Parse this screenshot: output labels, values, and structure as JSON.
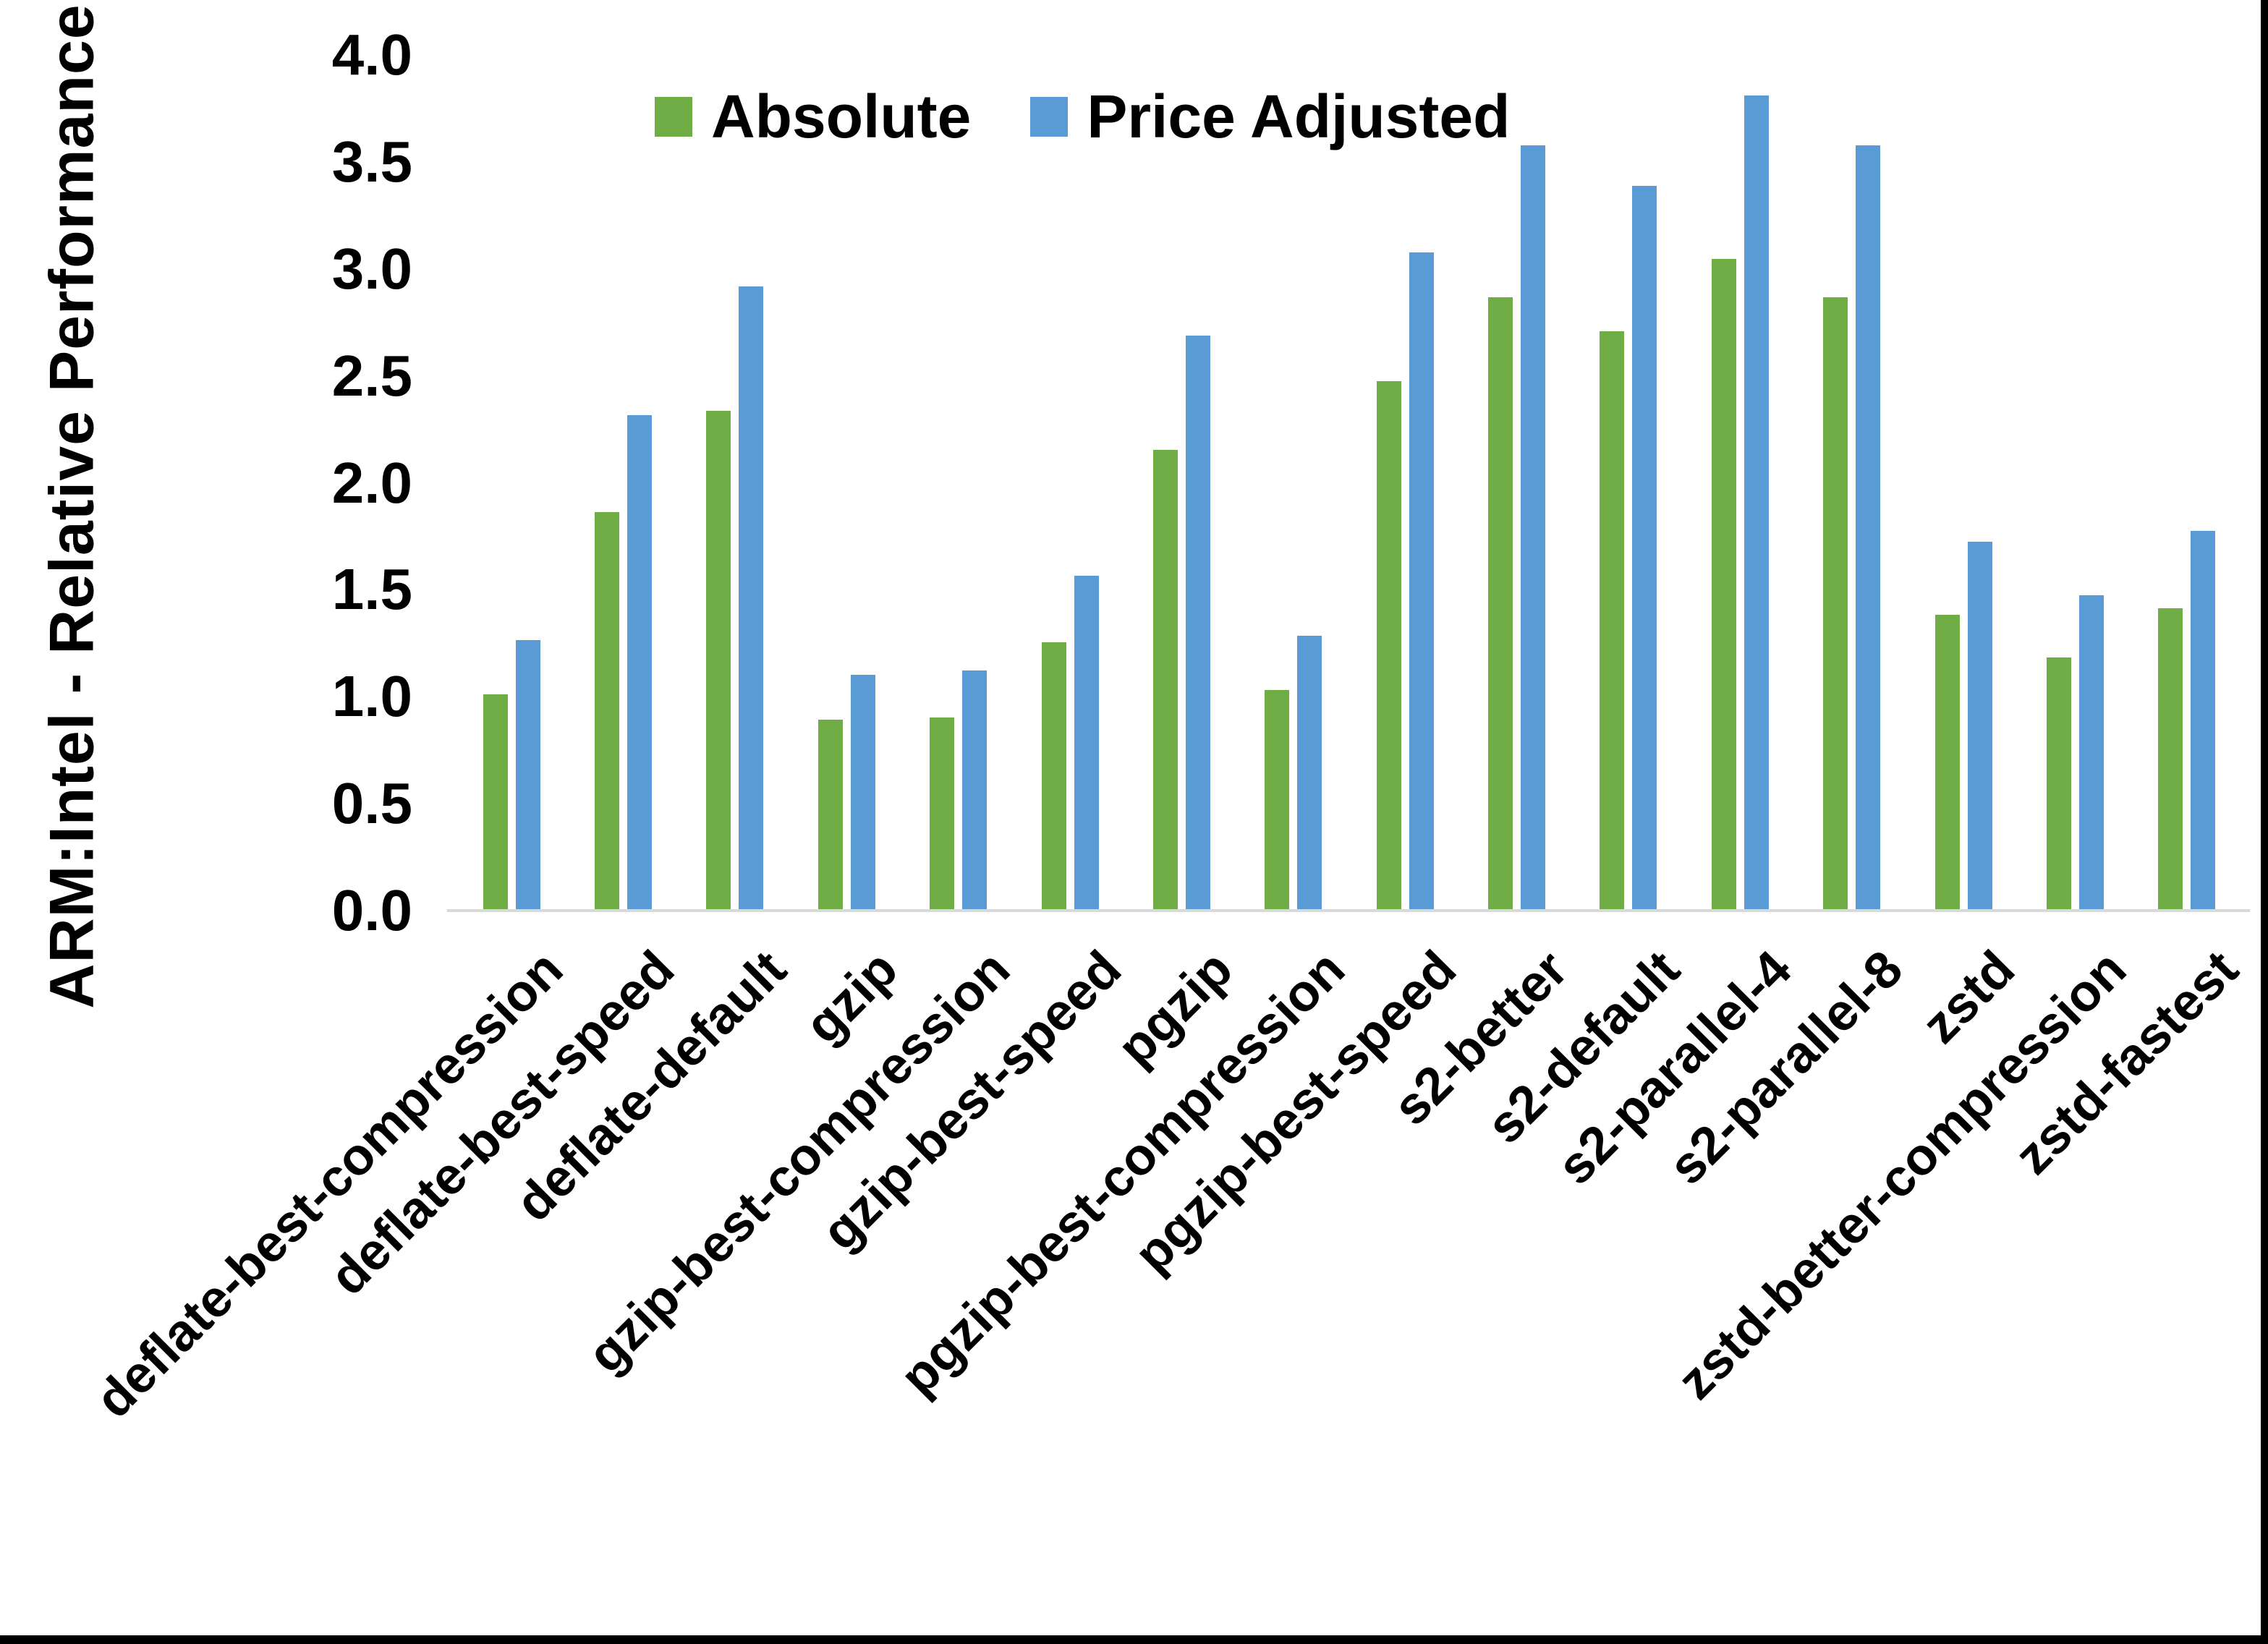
{
  "chart_data": {
    "type": "bar",
    "title": "",
    "xlabel": "",
    "ylabel": "ARM:Intel - Relative Performance",
    "ylim": [
      0,
      4.0
    ],
    "ytick_step": 0.5,
    "yticks": [
      "4.0",
      "3.5",
      "3.0",
      "2.5",
      "2.0",
      "1.5",
      "1.0",
      "0.5",
      "0.0"
    ],
    "grid": false,
    "legend_position": "top-center",
    "categories": [
      "deflate-best-compression",
      "deflate-best-speed",
      "deflate-default",
      "gzip",
      "gzip-best-compression",
      "gzip-best-speed",
      "pgzip",
      "pgzip-best-compression",
      "pgzip-best-speed",
      "s2-better",
      "s2-default",
      "s2-parallel-4",
      "s2-parallel-8",
      "zstd",
      "zstd-better-compression",
      "zstd-fastest"
    ],
    "series": [
      {
        "name": "Absolute",
        "color": "#70AD47",
        "values": [
          1.01,
          1.86,
          2.33,
          0.89,
          0.9,
          1.25,
          2.15,
          1.03,
          2.47,
          2.86,
          2.7,
          3.04,
          2.86,
          1.38,
          1.18,
          1.41
        ]
      },
      {
        "name": "Price Adjusted",
        "color": "#5B9BD5",
        "values": [
          1.26,
          2.31,
          2.91,
          1.1,
          1.12,
          1.56,
          2.68,
          1.28,
          3.07,
          3.57,
          3.38,
          3.8,
          3.57,
          1.72,
          1.47,
          1.77
        ]
      }
    ]
  },
  "colors": {
    "background": "#FFFFFF",
    "text": "#000000",
    "axis_line": "#D9D9D9",
    "frame_border": "#000000"
  }
}
